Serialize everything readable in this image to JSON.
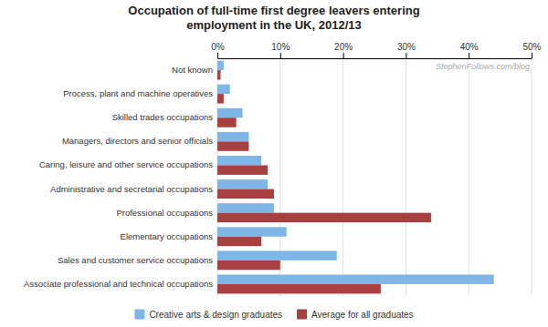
{
  "chart_data": {
    "type": "bar",
    "orientation": "horizontal",
    "title": "Occupation of full-time first degree leavers entering\nemployment in the UK, 2012/13",
    "annotations": [
      "StephenFollows.com/blog"
    ],
    "categories": [
      "Associate professional and technical occupations",
      "Sales and customer service occupations",
      "Elementary occupations",
      "Professional occupations",
      "Administrative and secretarial occupations",
      "Caring, leisure and other service occupations",
      "Managers, directors and senior officials",
      "Skilled trades occupations",
      "Process, plant and machine operatives",
      "Not known"
    ],
    "series": [
      {
        "name": "Creative arts & design graduates",
        "color": "#7eb6e8",
        "values": [
          44,
          19,
          11,
          9,
          8,
          7,
          5,
          4,
          2,
          1
        ]
      },
      {
        "name": "Average for all graduates",
        "color": "#a84040",
        "values": [
          26,
          10,
          7,
          34,
          9,
          8,
          5,
          3,
          1,
          0.5
        ]
      }
    ],
    "xlim": [
      0,
      50
    ],
    "xticks": [
      {
        "value": 0,
        "label": "0%"
      },
      {
        "value": 10,
        "label": "10%"
      },
      {
        "value": 20,
        "label": "20%"
      },
      {
        "value": 30,
        "label": "30%"
      },
      {
        "value": 40,
        "label": "40%"
      },
      {
        "value": 50,
        "label": "50%"
      }
    ],
    "grid": true,
    "legend": "bottom"
  }
}
